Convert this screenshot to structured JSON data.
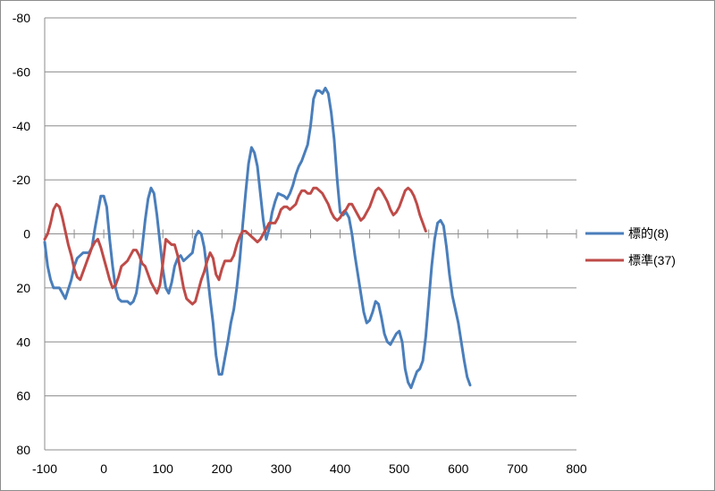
{
  "chart_data": {
    "type": "line",
    "title": "",
    "xlabel": "",
    "ylabel": "",
    "xlim": [
      -100,
      800
    ],
    "ylim": [
      80,
      -80
    ],
    "y_axis_reversed": true,
    "grid": "horizontal",
    "legend_position": "right",
    "x_ticks": [
      -100,
      0,
      100,
      200,
      300,
      400,
      500,
      600,
      700,
      800
    ],
    "y_ticks": [
      -80,
      -60,
      -40,
      -20,
      0,
      20,
      40,
      60,
      80
    ],
    "x_tick_labels": [
      "-100",
      "0",
      "100",
      "200",
      "300",
      "400",
      "500",
      "600",
      "700",
      "800"
    ],
    "y_tick_labels": [
      "-80",
      "-60",
      "-40",
      "-20",
      "0",
      "20",
      "40",
      "60",
      "80"
    ],
    "series": [
      {
        "name": "標的(8)",
        "color": "#4a7ebb",
        "points": [
          [
            -100,
            3
          ],
          [
            -95,
            12
          ],
          [
            -90,
            17
          ],
          [
            -85,
            20
          ],
          [
            -75,
            20
          ],
          [
            -70,
            22
          ],
          [
            -65,
            24
          ],
          [
            -55,
            17
          ],
          [
            -50,
            12
          ],
          [
            -45,
            9
          ],
          [
            -40,
            8
          ],
          [
            -35,
            7
          ],
          [
            -25,
            7
          ],
          [
            -20,
            5
          ],
          [
            -15,
            -2
          ],
          [
            -10,
            -8
          ],
          [
            -5,
            -14
          ],
          [
            0,
            -14
          ],
          [
            5,
            -10
          ],
          [
            10,
            2
          ],
          [
            15,
            12
          ],
          [
            20,
            20
          ],
          [
            25,
            24
          ],
          [
            30,
            25
          ],
          [
            40,
            25
          ],
          [
            45,
            26
          ],
          [
            50,
            25
          ],
          [
            55,
            22
          ],
          [
            60,
            15
          ],
          [
            65,
            5
          ],
          [
            70,
            -5
          ],
          [
            75,
            -13
          ],
          [
            80,
            -17
          ],
          [
            85,
            -15
          ],
          [
            90,
            -7
          ],
          [
            95,
            3
          ],
          [
            100,
            13
          ],
          [
            105,
            20
          ],
          [
            110,
            22
          ],
          [
            115,
            18
          ],
          [
            120,
            12
          ],
          [
            125,
            9
          ],
          [
            130,
            8
          ],
          [
            135,
            10
          ],
          [
            140,
            9
          ],
          [
            150,
            7
          ],
          [
            155,
            1
          ],
          [
            160,
            -1
          ],
          [
            165,
            0
          ],
          [
            170,
            5
          ],
          [
            175,
            14
          ],
          [
            180,
            24
          ],
          [
            185,
            33
          ],
          [
            190,
            45
          ],
          [
            195,
            52
          ],
          [
            200,
            52
          ],
          [
            205,
            46
          ],
          [
            210,
            40
          ],
          [
            215,
            33
          ],
          [
            220,
            28
          ],
          [
            225,
            20
          ],
          [
            230,
            10
          ],
          [
            235,
            -3
          ],
          [
            240,
            -15
          ],
          [
            245,
            -26
          ],
          [
            250,
            -32
          ],
          [
            255,
            -30
          ],
          [
            260,
            -25
          ],
          [
            265,
            -15
          ],
          [
            270,
            -5
          ],
          [
            275,
            2
          ],
          [
            280,
            -2
          ],
          [
            285,
            -8
          ],
          [
            290,
            -12
          ],
          [
            295,
            -15
          ],
          [
            305,
            -14
          ],
          [
            310,
            -13
          ],
          [
            315,
            -15
          ],
          [
            320,
            -18
          ],
          [
            325,
            -22
          ],
          [
            330,
            -25
          ],
          [
            335,
            -27
          ],
          [
            340,
            -30
          ],
          [
            345,
            -33
          ],
          [
            350,
            -40
          ],
          [
            355,
            -50
          ],
          [
            360,
            -53
          ],
          [
            365,
            -53
          ],
          [
            370,
            -52
          ],
          [
            375,
            -54
          ],
          [
            380,
            -52
          ],
          [
            385,
            -45
          ],
          [
            390,
            -35
          ],
          [
            395,
            -20
          ],
          [
            400,
            -8
          ],
          [
            405,
            -7
          ],
          [
            410,
            -8
          ],
          [
            415,
            -6
          ],
          [
            420,
            0
          ],
          [
            425,
            8
          ],
          [
            430,
            15
          ],
          [
            435,
            22
          ],
          [
            440,
            29
          ],
          [
            445,
            33
          ],
          [
            450,
            32
          ],
          [
            455,
            29
          ],
          [
            460,
            25
          ],
          [
            465,
            26
          ],
          [
            470,
            31
          ],
          [
            475,
            37
          ],
          [
            480,
            40
          ],
          [
            485,
            41
          ],
          [
            490,
            39
          ],
          [
            495,
            37
          ],
          [
            500,
            36
          ],
          [
            505,
            40
          ],
          [
            510,
            50
          ],
          [
            515,
            55
          ],
          [
            520,
            57
          ],
          [
            525,
            54
          ],
          [
            530,
            51
          ],
          [
            535,
            50
          ],
          [
            540,
            47
          ],
          [
            545,
            38
          ],
          [
            550,
            25
          ],
          [
            555,
            12
          ],
          [
            560,
            2
          ],
          [
            565,
            -4
          ],
          [
            570,
            -5
          ],
          [
            575,
            -3
          ],
          [
            580,
            5
          ],
          [
            585,
            15
          ],
          [
            590,
            23
          ],
          [
            595,
            28
          ],
          [
            600,
            33
          ],
          [
            605,
            40
          ],
          [
            610,
            47
          ],
          [
            615,
            53
          ],
          [
            620,
            56
          ]
        ]
      },
      {
        "name": "標準(37)",
        "color": "#be4b48",
        "points": [
          [
            -100,
            2
          ],
          [
            -95,
            0
          ],
          [
            -90,
            -4
          ],
          [
            -85,
            -9
          ],
          [
            -80,
            -11
          ],
          [
            -75,
            -10
          ],
          [
            -70,
            -6
          ],
          [
            -65,
            -1
          ],
          [
            -60,
            4
          ],
          [
            -55,
            8
          ],
          [
            -50,
            13
          ],
          [
            -45,
            16
          ],
          [
            -40,
            17
          ],
          [
            -35,
            14
          ],
          [
            -30,
            11
          ],
          [
            -25,
            8
          ],
          [
            -20,
            5
          ],
          [
            -15,
            3
          ],
          [
            -10,
            2
          ],
          [
            -5,
            5
          ],
          [
            0,
            9
          ],
          [
            5,
            13
          ],
          [
            10,
            17
          ],
          [
            15,
            20
          ],
          [
            20,
            19
          ],
          [
            25,
            16
          ],
          [
            30,
            12
          ],
          [
            35,
            11
          ],
          [
            40,
            10
          ],
          [
            45,
            8
          ],
          [
            50,
            6
          ],
          [
            55,
            6
          ],
          [
            60,
            8
          ],
          [
            65,
            11
          ],
          [
            70,
            12
          ],
          [
            75,
            15
          ],
          [
            80,
            18
          ],
          [
            85,
            20
          ],
          [
            90,
            22
          ],
          [
            95,
            19
          ],
          [
            100,
            11
          ],
          [
            105,
            2
          ],
          [
            110,
            3
          ],
          [
            115,
            4
          ],
          [
            120,
            4
          ],
          [
            125,
            8
          ],
          [
            130,
            14
          ],
          [
            135,
            20
          ],
          [
            140,
            24
          ],
          [
            145,
            25
          ],
          [
            150,
            26
          ],
          [
            155,
            25
          ],
          [
            160,
            21
          ],
          [
            165,
            17
          ],
          [
            170,
            14
          ],
          [
            175,
            10
          ],
          [
            180,
            7
          ],
          [
            185,
            9
          ],
          [
            190,
            15
          ],
          [
            195,
            17
          ],
          [
            200,
            13
          ],
          [
            205,
            10
          ],
          [
            210,
            10
          ],
          [
            215,
            10
          ],
          [
            220,
            8
          ],
          [
            225,
            4
          ],
          [
            230,
            1
          ],
          [
            235,
            -1
          ],
          [
            240,
            -1
          ],
          [
            245,
            0
          ],
          [
            250,
            1
          ],
          [
            255,
            2
          ],
          [
            260,
            3
          ],
          [
            265,
            2
          ],
          [
            270,
            0
          ],
          [
            275,
            -2
          ],
          [
            280,
            -4
          ],
          [
            290,
            -4
          ],
          [
            295,
            -6
          ],
          [
            300,
            -9
          ],
          [
            305,
            -10
          ],
          [
            310,
            -10
          ],
          [
            315,
            -9
          ],
          [
            320,
            -10
          ],
          [
            325,
            -11
          ],
          [
            330,
            -14
          ],
          [
            335,
            -16
          ],
          [
            340,
            -16
          ],
          [
            345,
            -15
          ],
          [
            350,
            -15
          ],
          [
            355,
            -17
          ],
          [
            360,
            -17
          ],
          [
            365,
            -16
          ],
          [
            370,
            -15
          ],
          [
            375,
            -13
          ],
          [
            380,
            -11
          ],
          [
            385,
            -8
          ],
          [
            390,
            -6
          ],
          [
            395,
            -5
          ],
          [
            400,
            -6
          ],
          [
            405,
            -8
          ],
          [
            410,
            -9
          ],
          [
            415,
            -11
          ],
          [
            420,
            -11
          ],
          [
            425,
            -9
          ],
          [
            430,
            -7
          ],
          [
            435,
            -5
          ],
          [
            440,
            -6
          ],
          [
            445,
            -8
          ],
          [
            450,
            -10
          ],
          [
            455,
            -13
          ],
          [
            460,
            -16
          ],
          [
            465,
            -17
          ],
          [
            470,
            -16
          ],
          [
            475,
            -14
          ],
          [
            480,
            -12
          ],
          [
            485,
            -9
          ],
          [
            490,
            -7
          ],
          [
            495,
            -8
          ],
          [
            500,
            -10
          ],
          [
            505,
            -13
          ],
          [
            510,
            -16
          ],
          [
            515,
            -17
          ],
          [
            520,
            -16
          ],
          [
            525,
            -14
          ],
          [
            530,
            -11
          ],
          [
            535,
            -7
          ],
          [
            540,
            -4
          ],
          [
            545,
            -1
          ]
        ]
      }
    ]
  }
}
